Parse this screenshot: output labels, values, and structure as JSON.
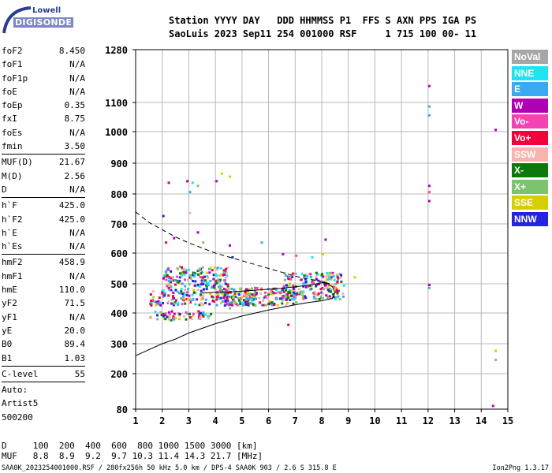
{
  "logo": {
    "top": "Lowell",
    "bottom": "DIGISONDE"
  },
  "header": {
    "line1": "Station YYYY DAY   DDD HHMMSS P1  FFS S AXN PPS IGA PS",
    "line2": "SaoLuis 2023 Sep11 254 001000 RSF     1 715 100 00- 11"
  },
  "params_group1": [
    {
      "label": "foF2",
      "value": "8.450"
    },
    {
      "label": "foF1",
      "value": "N/A"
    },
    {
      "label": "foF1p",
      "value": "N/A"
    },
    {
      "label": "foE",
      "value": "N/A"
    },
    {
      "label": "foEp",
      "value": "0.35"
    },
    {
      "label": "fxI",
      "value": "8.75"
    },
    {
      "label": "foEs",
      "value": "N/A"
    },
    {
      "label": "fmin",
      "value": "3.50"
    }
  ],
  "params_group2": [
    {
      "label": "MUF(D)",
      "value": "21.67"
    },
    {
      "label": "M(D)",
      "value": "2.56"
    },
    {
      "label": "D",
      "value": "N/A"
    }
  ],
  "params_group3": [
    {
      "label": "h`F",
      "value": "425.0"
    },
    {
      "label": "h`F2",
      "value": "425.0"
    },
    {
      "label": "h`E",
      "value": "N/A"
    },
    {
      "label": "h`Es",
      "value": "N/A"
    }
  ],
  "params_group4": [
    {
      "label": "hmF2",
      "value": "458.9"
    },
    {
      "label": "hmF1",
      "value": "N/A"
    },
    {
      "label": "hmE",
      "value": "110.0"
    },
    {
      "label": "yF2",
      "value": "71.5"
    },
    {
      "label": "yF1",
      "value": "N/A"
    },
    {
      "label": "yE",
      "value": "20.0"
    },
    {
      "label": "B0",
      "value": "89.4"
    },
    {
      "label": "B1",
      "value": "1.03"
    }
  ],
  "params_group5": [
    {
      "label": "C-level",
      "value": "55"
    }
  ],
  "autoscale": {
    "line1": "Auto:",
    "line2": "Artist5",
    "line3": "500200"
  },
  "legend": [
    {
      "label": "NoVal",
      "color": "#a6a6a6"
    },
    {
      "label": "NNE",
      "color": "#1fe3f2"
    },
    {
      "label": "E",
      "color": "#3aa9f0"
    },
    {
      "label": "W",
      "color": "#b000b4"
    },
    {
      "label": "Vo-",
      "color": "#f243b2"
    },
    {
      "label": "Vo+",
      "color": "#f2003c"
    },
    {
      "label": "SSW",
      "color": "#f7b3ad"
    },
    {
      "label": "X-",
      "color": "#0b7a0b"
    },
    {
      "label": "X+",
      "color": "#7cc46c"
    },
    {
      "label": "SSE",
      "color": "#d5cf00"
    },
    {
      "label": "NNW",
      "color": "#2323e0"
    }
  ],
  "chart_data": {
    "type": "scatter",
    "x_ticks": [
      "1",
      "2",
      "3",
      "4",
      "5",
      "6",
      "7",
      "8",
      "9",
      "10",
      "11",
      "12",
      "13",
      "14",
      "15"
    ],
    "y_ticks": [
      "1280",
      "1100",
      "1000",
      "900",
      "800",
      "700",
      "600",
      "500",
      "400",
      "300",
      "200",
      "80"
    ],
    "xlim": [
      1,
      15
    ],
    "ylim": [
      80,
      1280
    ],
    "grid": true,
    "curves": {
      "dashed_muf": [
        [
          1.0,
          740
        ],
        [
          1.5,
          705
        ],
        [
          2,
          680
        ],
        [
          2.5,
          655
        ],
        [
          3,
          635
        ],
        [
          4,
          600
        ],
        [
          5,
          575
        ],
        [
          6,
          550
        ],
        [
          7,
          525
        ],
        [
          7.5,
          515
        ],
        [
          8,
          508
        ],
        [
          8.3,
          500
        ]
      ],
      "solid_profile": [
        [
          1.0,
          260
        ],
        [
          1.5,
          280
        ],
        [
          2,
          300
        ],
        [
          2.5,
          315
        ],
        [
          3,
          335
        ],
        [
          4,
          365
        ],
        [
          5,
          390
        ],
        [
          6,
          410
        ],
        [
          7,
          428
        ],
        [
          7.5,
          436
        ],
        [
          8,
          442
        ],
        [
          8.4,
          450
        ],
        [
          8.5,
          470
        ],
        [
          8.4,
          490
        ],
        [
          8.1,
          505
        ],
        [
          7.5,
          495
        ],
        [
          6.5,
          485
        ],
        [
          5.5,
          478
        ],
        [
          4.5,
          472
        ],
        [
          3.8,
          470
        ],
        [
          3.5,
          468
        ]
      ]
    },
    "scatter_clusters": [
      {
        "fmin": 1.5,
        "fmax": 3.8,
        "hmin": 380,
        "hmax": 410
      },
      {
        "fmin": 1.5,
        "fmax": 5.5,
        "hmin": 430,
        "hmax": 480
      },
      {
        "fmin": 2.0,
        "fmax": 4.5,
        "hmin": 480,
        "hmax": 560
      },
      {
        "fmin": 4.0,
        "fmax": 7.0,
        "hmin": 430,
        "hmax": 490
      },
      {
        "fmin": 6.5,
        "fmax": 8.8,
        "hmin": 450,
        "hmax": 540
      }
    ],
    "sparse_points": [
      {
        "f": 12.0,
        "h": 1160,
        "c": "#b000b4"
      },
      {
        "f": 12.0,
        "h": 1090,
        "c": "#3aa9f0"
      },
      {
        "f": 12.0,
        "h": 1060,
        "c": "#3aa9f0"
      },
      {
        "f": 12.0,
        "h": 830,
        "c": "#b000b4"
      },
      {
        "f": 12.0,
        "h": 810,
        "c": "#f243b2"
      },
      {
        "f": 12.0,
        "h": 780,
        "c": "#b000b4"
      },
      {
        "f": 12.0,
        "h": 500,
        "c": "#b000b4"
      },
      {
        "f": 12.0,
        "h": 490,
        "c": "#3aa9f0"
      },
      {
        "f": 14.5,
        "h": 1010,
        "c": "#b000b4"
      },
      {
        "f": 14.5,
        "h": 280,
        "c": "#d5cf00"
      },
      {
        "f": 14.5,
        "h": 250,
        "c": "#7cc46c"
      },
      {
        "f": 14.4,
        "h": 95,
        "c": "#b000b4"
      },
      {
        "f": 2.2,
        "h": 840,
        "c": "#b000b4"
      },
      {
        "f": 2.9,
        "h": 845,
        "c": "#b000b4"
      },
      {
        "f": 3.1,
        "h": 840,
        "c": "#1fe3f2"
      },
      {
        "f": 3.3,
        "h": 830,
        "c": "#7cc46c"
      },
      {
        "f": 3.0,
        "h": 810,
        "c": "#3aa9f0"
      },
      {
        "f": 4.0,
        "h": 845,
        "c": "#b000b4"
      },
      {
        "f": 4.2,
        "h": 870,
        "c": "#d5cf00"
      },
      {
        "f": 4.5,
        "h": 860,
        "c": "#d5cf00"
      },
      {
        "f": 2.0,
        "h": 730,
        "c": "#2323e0"
      },
      {
        "f": 3.0,
        "h": 740,
        "c": "#f7b3ad"
      },
      {
        "f": 3.3,
        "h": 675,
        "c": "#b000b4"
      },
      {
        "f": 4.5,
        "h": 630,
        "c": "#b000b4"
      },
      {
        "f": 5.7,
        "h": 640,
        "c": "#3aa9f0"
      },
      {
        "f": 2.1,
        "h": 640,
        "c": "#f2003c"
      },
      {
        "f": 2.4,
        "h": 655,
        "c": "#b000b4"
      },
      {
        "f": 3.5,
        "h": 640,
        "c": "#7cc46c"
      },
      {
        "f": 8.1,
        "h": 650,
        "c": "#b000b4"
      },
      {
        "f": 7.0,
        "h": 595,
        "c": "#f243b2"
      },
      {
        "f": 6.5,
        "h": 600,
        "c": "#b000b4"
      },
      {
        "f": 7.6,
        "h": 590,
        "c": "#1fe3f2"
      },
      {
        "f": 8.0,
        "h": 600,
        "c": "#d5cf00"
      },
      {
        "f": 4.6,
        "h": 590,
        "c": "#2323e0"
      },
      {
        "f": 1.9,
        "h": 430,
        "c": "#b000b4"
      },
      {
        "f": 4.5,
        "h": 420,
        "c": "#7cc46c"
      },
      {
        "f": 6.7,
        "h": 365,
        "c": "#f2003c"
      },
      {
        "f": 9.2,
        "h": 525,
        "c": "#d5cf00"
      }
    ]
  },
  "footer": {
    "d_row": "D     100  200  400  600  800 1000 1500 3000 [km]",
    "muf_row": "MUF   8.8  8.9  9.2  9.7 10.3 11.4 14.3 21.7 [MHz]",
    "file_info": "SAA0K_2023254001000.RSF / 280fx256h 50 kHz 5.0 km / DPS-4 SAA0K 903 / 2.6 S 315.8 E",
    "version": "Ion2Png 1.3.17"
  }
}
